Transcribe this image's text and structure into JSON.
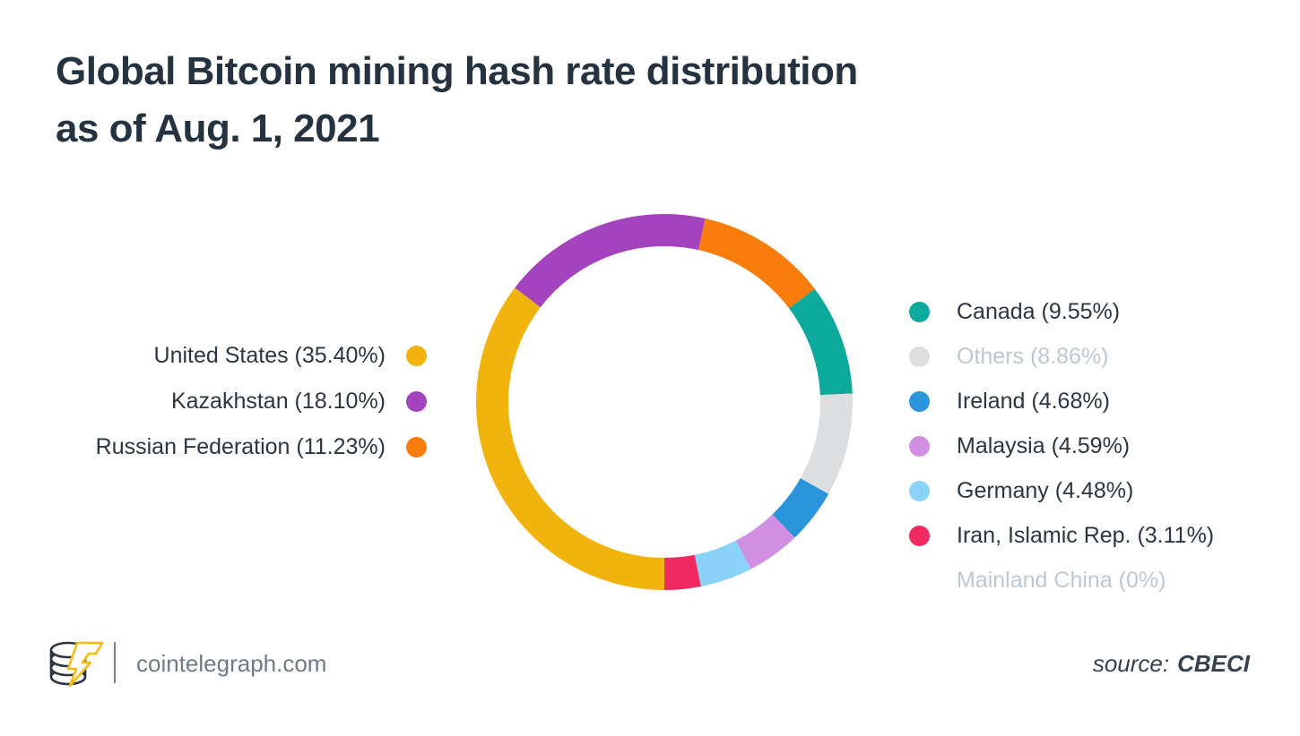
{
  "title": {
    "line1": "Global Bitcoin mining hash rate distribution",
    "line2": "as of Aug. 1, 2021"
  },
  "chart_data": {
    "type": "pie",
    "variant": "donut",
    "title": "Global Bitcoin mining hash rate distribution as of Aug. 1, 2021",
    "start_angle_deg": 12.6,
    "clockwise": true,
    "total": 100.0,
    "slices": [
      {
        "name": "Russian Federation",
        "value": 11.23,
        "color": "#F97D0C"
      },
      {
        "name": "Canada",
        "value": 9.55,
        "color": "#0CAA9D"
      },
      {
        "name": "Others",
        "value": 8.86,
        "color": "#DCDEE0"
      },
      {
        "name": "Ireland",
        "value": 4.68,
        "color": "#2A95DB"
      },
      {
        "name": "Malaysia",
        "value": 4.59,
        "color": "#D18FE2"
      },
      {
        "name": "Germany",
        "value": 4.48,
        "color": "#8BD2F8"
      },
      {
        "name": "Iran, Islamic Rep.",
        "value": 3.11,
        "color": "#F02A60"
      },
      {
        "name": "United States",
        "value": 35.4,
        "color": "#F1B40D"
      },
      {
        "name": "Kazakhstan",
        "value": 18.1,
        "color": "#A343BD"
      },
      {
        "name": "Mainland China",
        "value": 0,
        "color": null
      }
    ],
    "legend_position": "left-right"
  },
  "legend_left": [
    {
      "label": "United States (35.40%)",
      "color": "#F1B40D",
      "muted": false
    },
    {
      "label": "Kazakhstan (18.10%)",
      "color": "#A343BD",
      "muted": false
    },
    {
      "label": "Russian Federation (11.23%)",
      "color": "#F97D0C",
      "muted": false
    }
  ],
  "legend_right": [
    {
      "label": "Canada (9.55%)",
      "color": "#0CAA9D",
      "muted": false
    },
    {
      "label": "Others (8.86%)",
      "color": "#DCDEE0",
      "muted": true
    },
    {
      "label": "Ireland (4.68%)",
      "color": "#2A95DB",
      "muted": false
    },
    {
      "label": "Malaysia (4.59%)",
      "color": "#D18FE2",
      "muted": false
    },
    {
      "label": "Germany (4.48%)",
      "color": "#8BD2F8",
      "muted": false
    },
    {
      "label": "Iran, Islamic Rep. (3.11%)",
      "color": "#F02A60",
      "muted": false
    },
    {
      "label": "Mainland China (0%)",
      "color": null,
      "muted": true
    }
  ],
  "footer": {
    "site": "cointelegraph.com",
    "source_prefix": "source:",
    "source_name": "CBECI"
  },
  "colors": {
    "background": "#FFFFFF",
    "title_text": "#253340",
    "legend_text": "#2A3742",
    "muted_text": "#BCC8D2",
    "footer_text": "#6F7C87",
    "source_text": "#33424F",
    "logo_dark": "#2B3540",
    "logo_yellow": "#F5BB12"
  }
}
